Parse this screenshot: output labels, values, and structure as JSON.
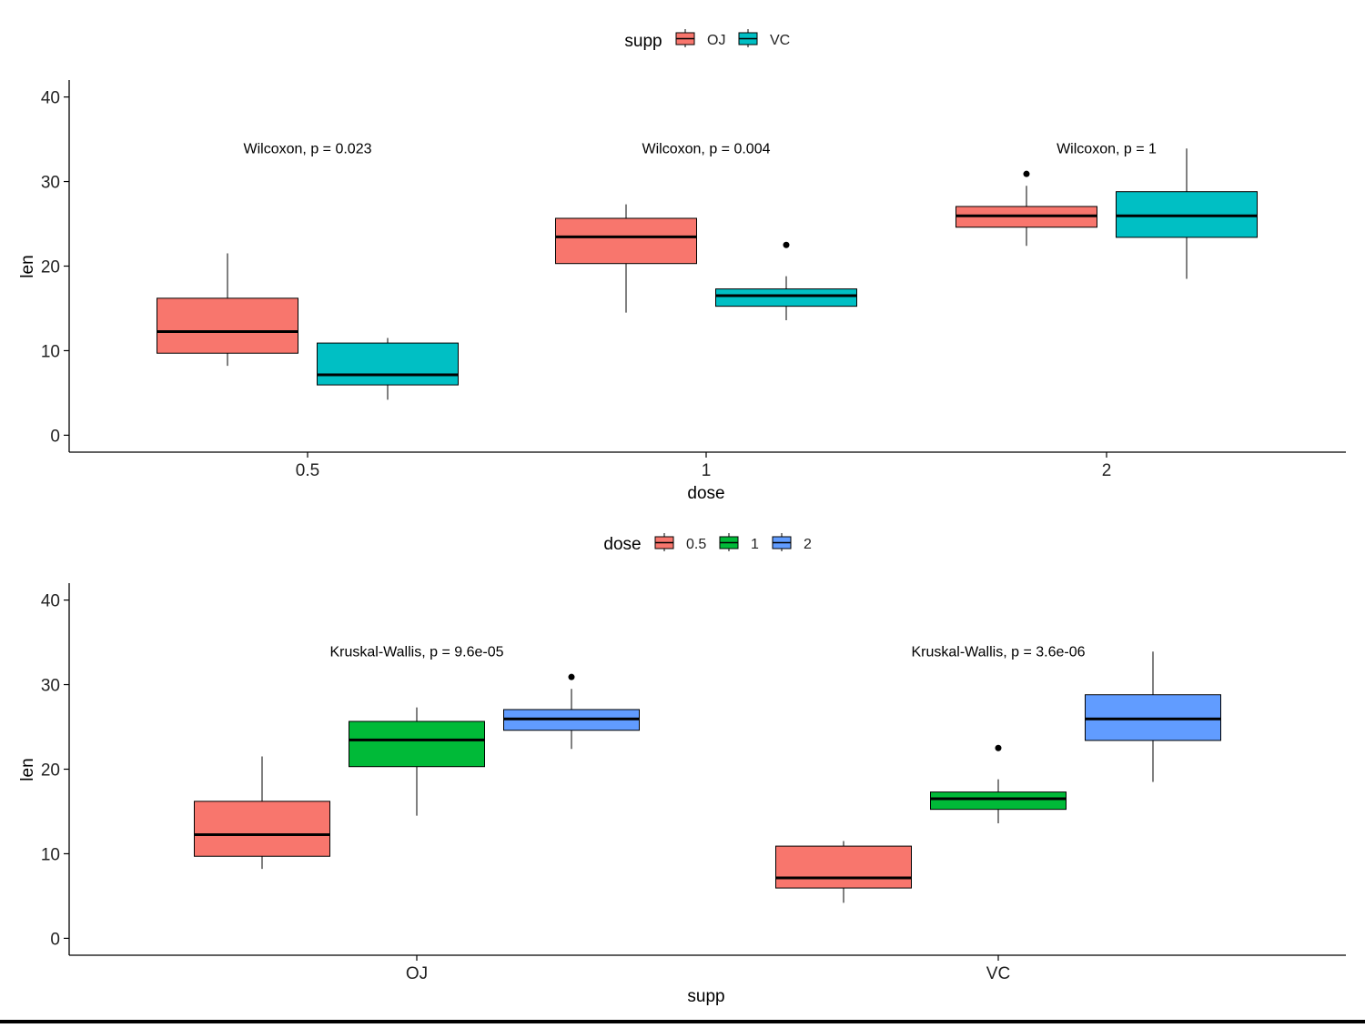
{
  "chart_data": [
    {
      "type": "boxplot",
      "xlabel": "dose",
      "ylabel": "len",
      "ylim": [
        -2,
        42
      ],
      "yticks": [
        0,
        10,
        20,
        30,
        40
      ],
      "categories": [
        "0.5",
        "1",
        "2"
      ],
      "legend": {
        "title": "supp",
        "position": "top",
        "entries": [
          {
            "label": "OJ",
            "color": "#F8766D"
          },
          {
            "label": "VC",
            "color": "#00BFC4"
          }
        ]
      },
      "annotations": [
        "Wilcoxon, p = 0.023",
        "Wilcoxon, p = 0.004",
        "Wilcoxon, p = 1"
      ],
      "annotation_y": 34,
      "boxes": [
        {
          "category": "0.5",
          "group": "OJ",
          "color": "#F8766D",
          "min": 8.2,
          "q1": 9.7,
          "median": 12.25,
          "q3": 16.2,
          "max": 21.5,
          "outliers": []
        },
        {
          "category": "0.5",
          "group": "VC",
          "color": "#00BFC4",
          "min": 4.2,
          "q1": 5.95,
          "median": 7.15,
          "q3": 10.9,
          "max": 11.5,
          "outliers": []
        },
        {
          "category": "1",
          "group": "OJ",
          "color": "#F8766D",
          "min": 14.5,
          "q1": 20.3,
          "median": 23.45,
          "q3": 25.65,
          "max": 27.3,
          "outliers": []
        },
        {
          "category": "1",
          "group": "VC",
          "color": "#00BFC4",
          "min": 13.6,
          "q1": 15.25,
          "median": 16.5,
          "q3": 17.3,
          "max": 18.8,
          "outliers": [
            22.5
          ]
        },
        {
          "category": "2",
          "group": "OJ",
          "color": "#F8766D",
          "min": 22.4,
          "q1": 24.6,
          "median": 25.95,
          "q3": 27.05,
          "max": 29.5,
          "outliers": [
            30.9
          ]
        },
        {
          "category": "2",
          "group": "VC",
          "color": "#00BFC4",
          "min": 18.5,
          "q1": 23.4,
          "median": 25.95,
          "q3": 28.8,
          "max": 33.9,
          "outliers": []
        }
      ]
    },
    {
      "type": "boxplot",
      "xlabel": "supp",
      "ylabel": "len",
      "ylim": [
        -2,
        42
      ],
      "yticks": [
        0,
        10,
        20,
        30,
        40
      ],
      "categories": [
        "OJ",
        "VC"
      ],
      "legend": {
        "title": "dose",
        "position": "top",
        "entries": [
          {
            "label": "0.5",
            "color": "#F8766D"
          },
          {
            "label": "1",
            "color": "#00BA38"
          },
          {
            "label": "2",
            "color": "#619CFF"
          }
        ]
      },
      "annotations": [
        "Kruskal-Wallis, p = 9.6e-05",
        "Kruskal-Wallis, p = 3.6e-06"
      ],
      "annotation_y": 34,
      "boxes": [
        {
          "category": "OJ",
          "group": "0.5",
          "color": "#F8766D",
          "min": 8.2,
          "q1": 9.7,
          "median": 12.25,
          "q3": 16.2,
          "max": 21.5,
          "outliers": []
        },
        {
          "category": "OJ",
          "group": "1",
          "color": "#00BA38",
          "min": 14.5,
          "q1": 20.3,
          "median": 23.45,
          "q3": 25.65,
          "max": 27.3,
          "outliers": []
        },
        {
          "category": "OJ",
          "group": "2",
          "color": "#619CFF",
          "min": 22.4,
          "q1": 24.6,
          "median": 25.95,
          "q3": 27.05,
          "max": 29.5,
          "outliers": [
            30.9
          ]
        },
        {
          "category": "VC",
          "group": "0.5",
          "color": "#F8766D",
          "min": 4.2,
          "q1": 5.95,
          "median": 7.15,
          "q3": 10.9,
          "max": 11.5,
          "outliers": []
        },
        {
          "category": "VC",
          "group": "1",
          "color": "#00BA38",
          "min": 13.6,
          "q1": 15.25,
          "median": 16.5,
          "q3": 17.3,
          "max": 18.8,
          "outliers": [
            22.5
          ]
        },
        {
          "category": "VC",
          "group": "2",
          "color": "#619CFF",
          "min": 18.5,
          "q1": 23.4,
          "median": 25.95,
          "q3": 28.8,
          "max": 33.9,
          "outliers": []
        }
      ]
    }
  ]
}
